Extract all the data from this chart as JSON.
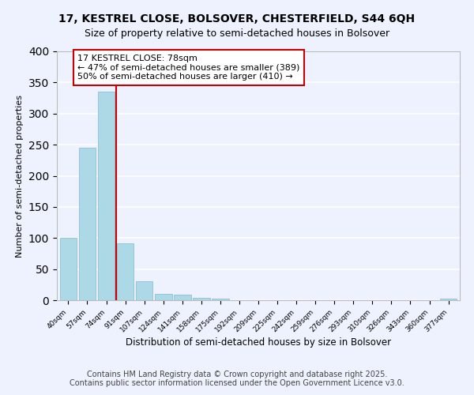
{
  "title_line1": "17, KESTREL CLOSE, BOLSOVER, CHESTERFIELD, S44 6QH",
  "title_line2": "Size of property relative to semi-detached houses in Bolsover",
  "xlabel": "Distribution of semi-detached houses by size in Bolsover",
  "ylabel": "Number of semi-detached properties",
  "categories": [
    "40sqm",
    "57sqm",
    "74sqm",
    "91sqm",
    "107sqm",
    "124sqm",
    "141sqm",
    "158sqm",
    "175sqm",
    "192sqm",
    "209sqm",
    "225sqm",
    "242sqm",
    "259sqm",
    "276sqm",
    "293sqm",
    "310sqm",
    "326sqm",
    "343sqm",
    "360sqm",
    "377sqm"
  ],
  "values": [
    100,
    245,
    335,
    92,
    31,
    10,
    9,
    4,
    2,
    0,
    0,
    0,
    0,
    0,
    0,
    0,
    0,
    0,
    0,
    0,
    3
  ],
  "bar_color": "#add8e6",
  "bar_edge_color": "#7fb8d4",
  "property_line_x": 2.5,
  "property_line_color": "#cc0000",
  "annotation_text": "17 KESTREL CLOSE: 78sqm\n← 47% of semi-detached houses are smaller (389)\n50% of semi-detached houses are larger (410) →",
  "annotation_box_color": "#ffffff",
  "annotation_box_edge_color": "#cc0000",
  "ylim": [
    0,
    400
  ],
  "yticks": [
    0,
    50,
    100,
    150,
    200,
    250,
    300,
    350,
    400
  ],
  "footnote1": "Contains HM Land Registry data © Crown copyright and database right 2025.",
  "footnote2": "Contains public sector information licensed under the Open Government Licence v3.0.",
  "bg_color": "#eef2ff",
  "grid_color": "#ffffff",
  "title_fontsize": 10,
  "subtitle_fontsize": 9,
  "annotation_fontsize": 8,
  "footnote_fontsize": 7
}
